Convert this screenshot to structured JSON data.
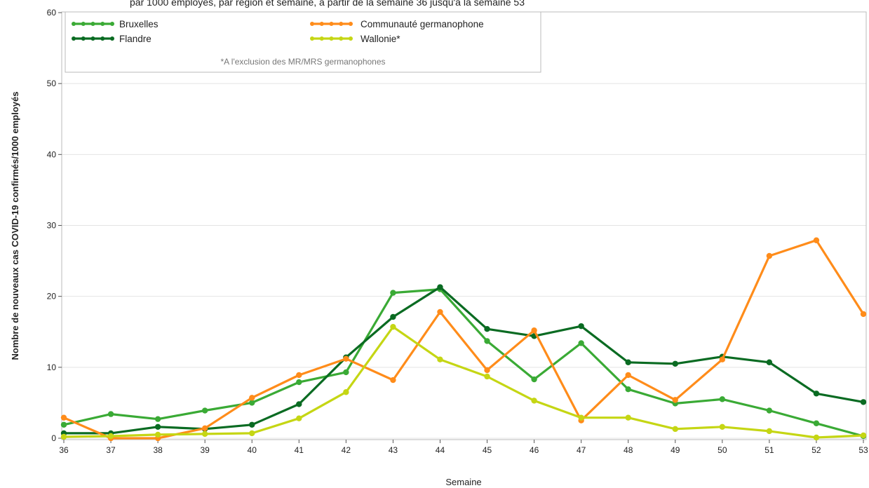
{
  "header": {
    "title_fragment": "par 1000 employés, par région et semaine, à partir de la semaine 36 jusqu'à la semaine 53"
  },
  "chart_data": {
    "type": "line",
    "xlabel": "Semaine",
    "ylabel": "Nombre de nouveaux cas COVID-19 confirmés/1000 employés",
    "x": [
      36,
      37,
      38,
      39,
      40,
      41,
      42,
      43,
      44,
      45,
      46,
      47,
      48,
      49,
      50,
      51,
      52,
      53
    ],
    "xlim": [
      36,
      53
    ],
    "ylim": [
      0,
      60
    ],
    "yticks": [
      0,
      10,
      20,
      30,
      40,
      50,
      60
    ],
    "grid": true,
    "legend_position": "top-left",
    "legend_note": "*A l'exclusion des MR/MRS germanophones",
    "series": [
      {
        "name": "Bruxelles",
        "color": "#3aaa35",
        "values": [
          1.9,
          3.4,
          2.7,
          3.9,
          5.0,
          7.9,
          9.3,
          20.5,
          21.0,
          13.7,
          8.3,
          13.4,
          6.9,
          4.9,
          5.5,
          3.9,
          2.1,
          0.3
        ]
      },
      {
        "name": "Flandre",
        "color": "#0a6b22",
        "values": [
          0.7,
          0.7,
          1.6,
          1.3,
          1.9,
          4.8,
          11.4,
          17.1,
          21.3,
          15.4,
          14.4,
          15.8,
          10.7,
          10.5,
          11.5,
          10.7,
          6.3,
          5.1
        ]
      },
      {
        "name": "Communauté germanophone",
        "color": "#ff8c1a",
        "values": [
          2.9,
          0.0,
          0.0,
          1.4,
          5.7,
          8.9,
          11.2,
          8.2,
          17.8,
          9.6,
          15.2,
          2.5,
          8.9,
          5.4,
          11.1,
          25.7,
          27.9,
          17.5
        ]
      },
      {
        "name": "Wallonie*",
        "color": "#c5d614",
        "values": [
          0.2,
          0.3,
          0.5,
          0.6,
          0.7,
          2.8,
          6.5,
          15.7,
          11.1,
          8.7,
          5.3,
          2.9,
          2.9,
          1.3,
          1.6,
          1.0,
          0.1,
          0.4
        ]
      }
    ]
  }
}
